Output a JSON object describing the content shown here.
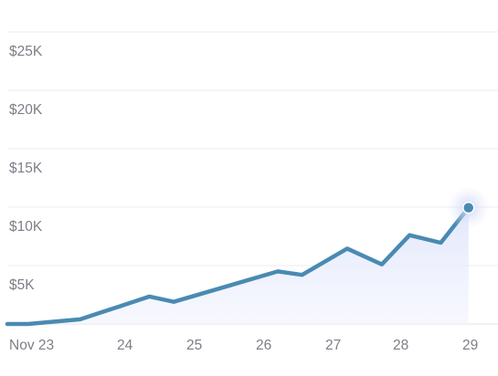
{
  "chart_data": {
    "type": "area",
    "title": "",
    "xlabel": "",
    "ylabel": "",
    "ylim": [
      0,
      25000
    ],
    "yticks": [
      "$25K",
      "$20K",
      "$15K",
      "$10K",
      "$5K"
    ],
    "xticks": [
      "Nov 23",
      "24",
      "25",
      "26",
      "27",
      "28",
      "29"
    ],
    "grid": true,
    "line_color": "#4a8ab2",
    "fill_color": "#e8ecfb",
    "series": [
      {
        "values": [
          {
            "x": 22.7,
            "y": 0
          },
          {
            "x": 23.0,
            "y": 0
          },
          {
            "x": 23.75,
            "y": 400
          },
          {
            "x": 24.75,
            "y": 2350
          },
          {
            "x": 25.1,
            "y": 1900
          },
          {
            "x": 26.6,
            "y": 4500
          },
          {
            "x": 26.95,
            "y": 4200
          },
          {
            "x": 27.6,
            "y": 6450
          },
          {
            "x": 28.1,
            "y": 5100
          },
          {
            "x": 28.5,
            "y": 7600
          },
          {
            "x": 28.95,
            "y": 6950
          },
          {
            "x": 29.35,
            "y": 9950
          }
        ]
      }
    ]
  }
}
